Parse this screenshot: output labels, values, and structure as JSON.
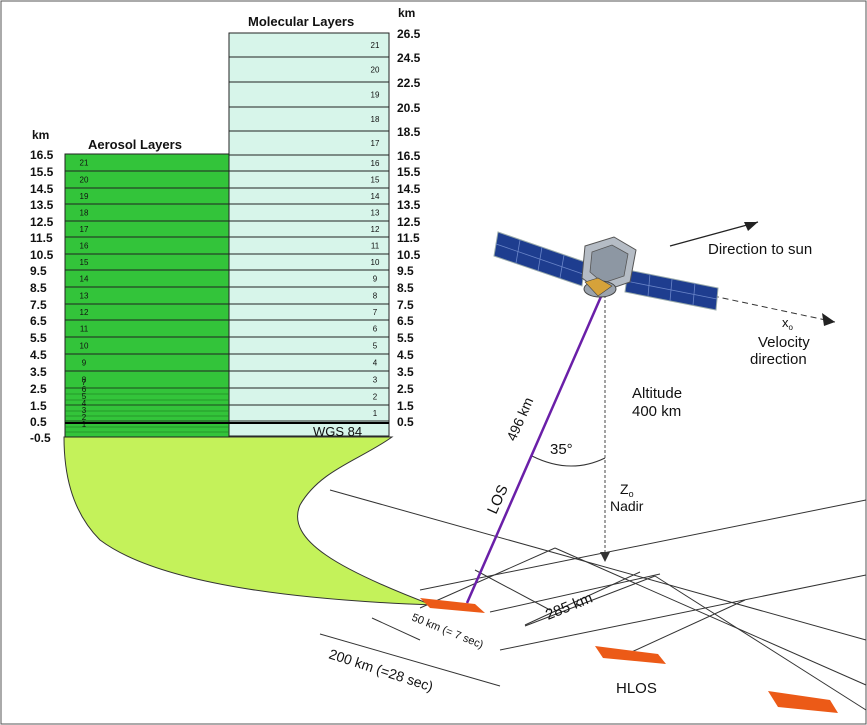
{
  "title_molecular": "Molecular Layers",
  "title_aerosol": "Aerosol Layers",
  "km_unit": "km",
  "molecular_right_labels": [
    "26.5",
    "24.5",
    "22.5",
    "20.5",
    "18.5",
    "16.5",
    "15.5",
    "14.5",
    "13.5",
    "12.5",
    "11.5",
    "10.5",
    "9.5",
    "8.5",
    "7.5",
    "6.5",
    "5.5",
    "4.5",
    "3.5",
    "2.5",
    "1.5",
    "0.5"
  ],
  "aerosol_left_labels": [
    "16.5",
    "15.5",
    "14.5",
    "13.5",
    "12.5",
    "11.5",
    "10.5",
    "9.5",
    "8.5",
    "7.5",
    "6.5",
    "5.5",
    "4.5",
    "3.5",
    "2.5",
    "1.5",
    "0.5",
    "-0.5"
  ],
  "molecular_layer_numbers": [
    "21",
    "20",
    "19",
    "18",
    "17",
    "16",
    "15",
    "14",
    "13",
    "12",
    "11",
    "10",
    "9",
    "8",
    "7",
    "6",
    "5",
    "4",
    "3",
    "2",
    "1"
  ],
  "aerosol_layer_numbers": [
    "21",
    "20",
    "19",
    "18",
    "17",
    "16",
    "15",
    "14",
    "13",
    "12",
    "11",
    "10",
    "9",
    "8",
    "7",
    "6",
    "5",
    "4",
    "3",
    "2",
    "1"
  ],
  "wgs_label": "WGS 84",
  "direction_to_sun": "Direction to sun",
  "xo_label": "x",
  "xo_sub": "o",
  "velocity_line1": "Velocity",
  "velocity_line2": "direction",
  "altitude_line1": "Altitude",
  "altitude_line2": "400 km",
  "los_distance": "496 km",
  "los_label": "LOS",
  "angle_label": "35°",
  "zo_label": "Z",
  "zo_sub": "o",
  "nadir_label": "Nadir",
  "offset_285": "285 km",
  "obs_50": "50 km (= 7 sec)",
  "obs_200": "200 km (=28 sec)",
  "hlos_label": "HLOS",
  "colors": {
    "molecular_fill": "#d7f5ea",
    "aerosol_fill": "#33c43a",
    "ground_fill": "#c4f25a",
    "los_line": "#6a1fa8",
    "footprint": "#ec5a17",
    "panel_blue": "#1e3d8f"
  }
}
